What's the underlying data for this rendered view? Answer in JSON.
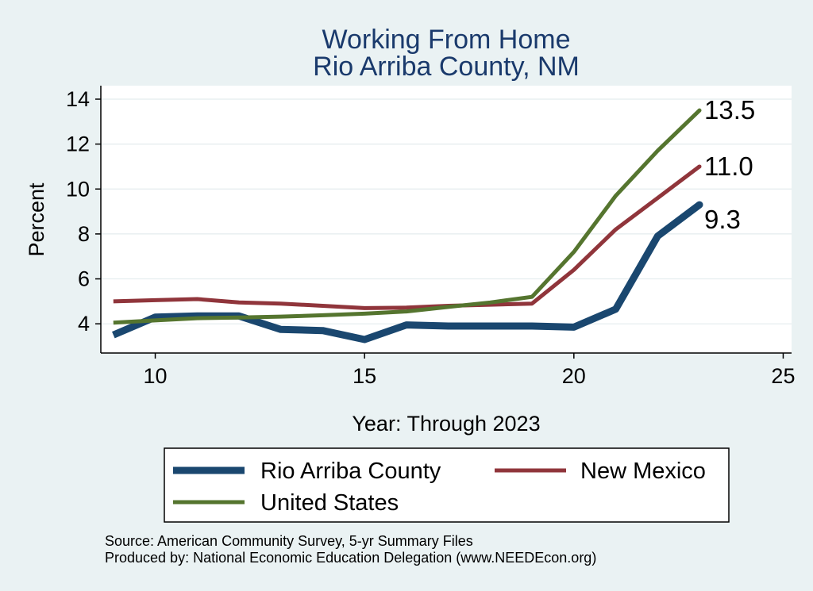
{
  "chart_data": {
    "type": "line",
    "title": [
      "Working From Home",
      "Rio Arriba County, NM"
    ],
    "xlabel": "Year: Through 2023",
    "ylabel": "Percent",
    "xlim": [
      8.7,
      25.2
    ],
    "ylim": [
      2.7,
      14.6
    ],
    "xticks": [
      10,
      15,
      20,
      25
    ],
    "yticks": [
      4,
      6,
      8,
      10,
      12,
      14
    ],
    "grid": true,
    "legend_position": "bottom",
    "x": [
      9,
      10,
      11,
      12,
      13,
      14,
      15,
      16,
      17,
      18,
      19,
      20,
      21,
      22,
      23
    ],
    "series": [
      {
        "name": "Rio Arriba County",
        "color": "#1a476f",
        "width": 9,
        "values": [
          3.5,
          4.3,
          4.35,
          4.35,
          3.75,
          3.7,
          3.3,
          3.95,
          3.9,
          3.9,
          3.9,
          3.85,
          4.65,
          7.9,
          9.3
        ],
        "end_label": "9.3"
      },
      {
        "name": "New Mexico",
        "color": "#90353b",
        "width": 5,
        "values": [
          5.0,
          5.05,
          5.1,
          4.95,
          4.9,
          4.8,
          4.7,
          4.72,
          4.8,
          4.85,
          4.9,
          6.4,
          8.2,
          9.6,
          11.0
        ],
        "end_label": "11.0"
      },
      {
        "name": "United States",
        "color": "#55752f",
        "width": 5,
        "values": [
          4.05,
          4.15,
          4.25,
          4.28,
          4.32,
          4.38,
          4.45,
          4.55,
          4.75,
          4.95,
          5.2,
          7.2,
          9.7,
          11.7,
          13.5
        ],
        "end_label": "13.5"
      }
    ],
    "notes": [
      "Source: American Community Survey, 5-yr Summary Files",
      "Produced by: National Economic Education Delegation (www.NEEDEcon.org)"
    ]
  }
}
